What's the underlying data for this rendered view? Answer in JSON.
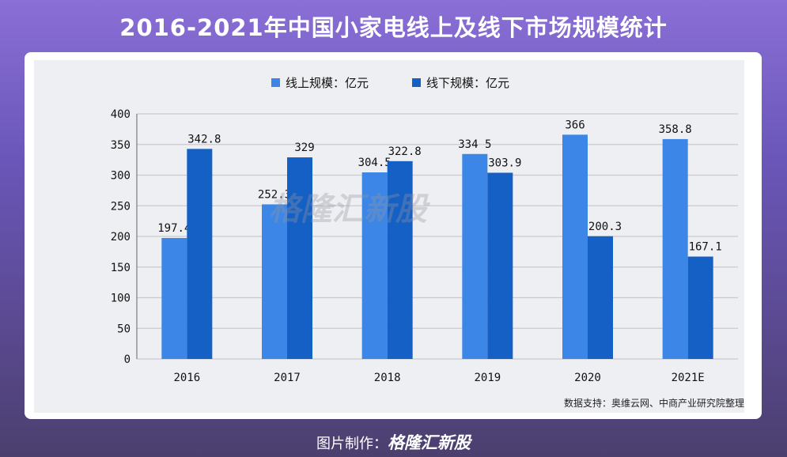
{
  "header": {
    "title": "2016-2021年中国小家电线上及线下市场规模统计"
  },
  "source": "数据支持：奥维云网、中商产业研究院整理",
  "footer": {
    "prefix": "图片制作：",
    "logo": "格隆汇新股"
  },
  "watermark": "格隆汇新股",
  "colors": {
    "online": "#3b86e6",
    "offline": "#1560c5"
  },
  "chart_data": {
    "type": "bar",
    "categories": [
      "2016",
      "2017",
      "2018",
      "2019",
      "2020",
      "2021E"
    ],
    "series": [
      {
        "name": "线上规模：亿元",
        "values": [
          197.4,
          252.3,
          304.5,
          334.5,
          366,
          358.8
        ],
        "labels": [
          "197.4",
          "252.3",
          "304.5",
          "334 5",
          "366",
          "358.8"
        ]
      },
      {
        "name": "线下规模：亿元",
        "values": [
          342.8,
          329,
          322.8,
          303.9,
          200.3,
          167.1
        ],
        "labels": [
          "342.8",
          "329",
          "322.8",
          "303.9",
          "200.3",
          "167.1"
        ]
      }
    ],
    "ylim": [
      0,
      400
    ],
    "yticks": [
      0,
      50,
      100,
      150,
      200,
      250,
      300,
      350,
      400
    ],
    "grid": true,
    "legend": "top-center"
  }
}
